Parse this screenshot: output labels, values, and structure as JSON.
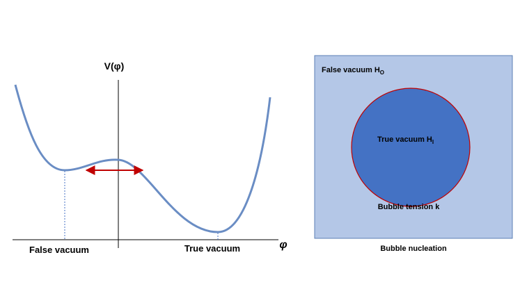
{
  "potential_diagram": {
    "y_axis_label": "V(φ)",
    "x_axis_label": "φ",
    "left_minimum_label": "False vacuum",
    "right_minimum_label": "True vacuum"
  },
  "bubble_diagram": {
    "outer_label": {
      "text": "False vacuum  H",
      "subscript": "O"
    },
    "inner_label": {
      "text": "True vacuum H",
      "subscript": "I"
    },
    "wall_label": "Bubble tension k",
    "caption": "Bubble nucleation"
  }
}
